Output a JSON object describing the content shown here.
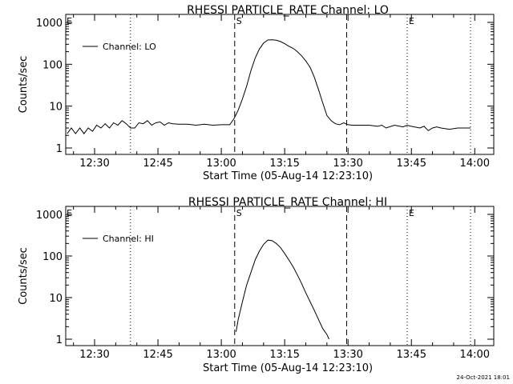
{
  "chart_data": [
    {
      "type": "line",
      "title": "RHESSI PARTICLE_RATE Channel: LO",
      "xlabel": "Start Time (05-Aug-14 12:23:10)",
      "ylabel": "Counts/sec",
      "yscale": "log",
      "ylim": [
        1,
        1000
      ],
      "xlim": [
        "12:23:10",
        "14:04:30"
      ],
      "xticks": [
        "12:30",
        "12:45",
        "13:00",
        "13:15",
        "13:30",
        "13:45",
        "14:00"
      ],
      "yticks": [
        "1",
        "10",
        "100",
        "1000"
      ],
      "legend": {
        "label": "Channel: LO",
        "placement": "top-left"
      },
      "markers": [
        {
          "time": "12:38:30",
          "style": "dotted",
          "label": ""
        },
        {
          "time": "13:03:10",
          "style": "dashed",
          "label": "S"
        },
        {
          "time": "13:29:40",
          "style": "dashed",
          "label": ""
        },
        {
          "time": "13:44:00",
          "style": "dotted",
          "label": "E"
        },
        {
          "time": "13:59:00",
          "style": "dotted",
          "label": ""
        }
      ],
      "start_marker_label": "E",
      "series": [
        {
          "name": "Channel: LO",
          "x": [
            "12:23:30",
            "12:24:30",
            "12:25:30",
            "12:26:30",
            "12:27:30",
            "12:28:30",
            "12:29:30",
            "12:30:30",
            "12:31:30",
            "12:32:30",
            "12:33:30",
            "12:34:30",
            "12:35:30",
            "12:36:30",
            "12:37:30",
            "12:38:30",
            "12:39:30",
            "12:40:30",
            "12:41:30",
            "12:42:30",
            "12:43:30",
            "12:44:30",
            "12:45:30",
            "12:46:30",
            "12:47:30",
            "12:48:30",
            "12:50:00",
            "12:52:00",
            "12:54:00",
            "12:56:00",
            "12:58:00",
            "13:00:00",
            "13:02:00",
            "13:03:00",
            "13:04:00",
            "13:05:00",
            "13:06:00",
            "13:07:00",
            "13:08:00",
            "13:09:00",
            "13:10:00",
            "13:11:00",
            "13:12:00",
            "13:13:00",
            "13:14:00",
            "13:15:00",
            "13:16:00",
            "13:17:00",
            "13:18:00",
            "13:19:00",
            "13:20:00",
            "13:21:00",
            "13:22:00",
            "13:23:00",
            "13:24:00",
            "13:25:00",
            "13:26:00",
            "13:27:00",
            "13:28:00",
            "13:29:00",
            "13:30:00",
            "13:31:00",
            "13:33:00",
            "13:35:00",
            "13:37:00",
            "13:38:00",
            "13:39:00",
            "13:41:00",
            "13:43:00",
            "13:44:00",
            "13:45:00",
            "13:47:00",
            "13:48:00",
            "13:49:00",
            "13:50:00",
            "13:51:00",
            "13:52:00",
            "13:54:00",
            "13:56:00",
            "13:58:00",
            "13:59:00"
          ],
          "y": [
            2.2,
            3,
            2.2,
            3,
            2.2,
            3,
            2.5,
            3.5,
            3,
            3.8,
            3,
            4,
            3.5,
            4.5,
            3.8,
            3,
            3,
            4,
            3.8,
            4.5,
            3.5,
            4,
            4.2,
            3.5,
            4,
            3.8,
            3.7,
            3.7,
            3.5,
            3.7,
            3.5,
            3.6,
            3.6,
            5,
            8,
            15,
            30,
            70,
            140,
            230,
            320,
            380,
            385,
            375,
            350,
            310,
            270,
            240,
            200,
            160,
            120,
            85,
            50,
            25,
            12,
            6,
            4.5,
            3.8,
            3.6,
            4,
            3.6,
            3.5,
            3.5,
            3.5,
            3.3,
            3.5,
            3,
            3.5,
            3.2,
            3.5,
            3.3,
            3,
            3.3,
            2.6,
            3,
            3.2,
            3,
            2.8,
            3,
            3,
            3
          ]
        }
      ]
    },
    {
      "type": "line",
      "title": "RHESSI PARTICLE_RATE Channel: HI",
      "xlabel": "Start Time (05-Aug-14 12:23:10)",
      "ylabel": "Counts/sec",
      "yscale": "log",
      "ylim": [
        1,
        1000
      ],
      "xlim": [
        "12:23:10",
        "14:04:30"
      ],
      "xticks": [
        "12:30",
        "12:45",
        "13:00",
        "13:15",
        "13:30",
        "13:45",
        "14:00"
      ],
      "yticks": [
        "1",
        "10",
        "100",
        "1000"
      ],
      "legend": {
        "label": "Channel: HI",
        "placement": "top-left"
      },
      "markers": [
        {
          "time": "12:38:30",
          "style": "dotted",
          "label": ""
        },
        {
          "time": "13:03:10",
          "style": "dashed",
          "label": "S"
        },
        {
          "time": "13:29:40",
          "style": "dashed",
          "label": ""
        },
        {
          "time": "13:44:00",
          "style": "dotted",
          "label": "E"
        },
        {
          "time": "13:59:00",
          "style": "dotted",
          "label": ""
        }
      ],
      "start_marker_label": "E",
      "series": [
        {
          "name": "Channel: HI",
          "x": [
            "13:03:30",
            "13:04:00",
            "13:05:00",
            "13:06:00",
            "13:07:00",
            "13:08:00",
            "13:09:00",
            "13:10:00",
            "13:11:00",
            "13:12:00",
            "13:13:00",
            "13:14:00",
            "13:15:00",
            "13:16:00",
            "13:17:00",
            "13:18:00",
            "13:19:00",
            "13:20:00",
            "13:21:00",
            "13:22:00",
            "13:23:00",
            "13:24:00",
            "13:25:00",
            "13:25:30"
          ],
          "y": [
            1.5,
            3,
            8,
            20,
            40,
            80,
            130,
            190,
            240,
            235,
            200,
            160,
            115,
            80,
            55,
            35,
            22,
            13,
            8,
            5,
            3,
            1.8,
            1.3,
            1
          ]
        }
      ]
    }
  ],
  "footer": {
    "timestamp": "24-Oct-2021 18:01"
  }
}
